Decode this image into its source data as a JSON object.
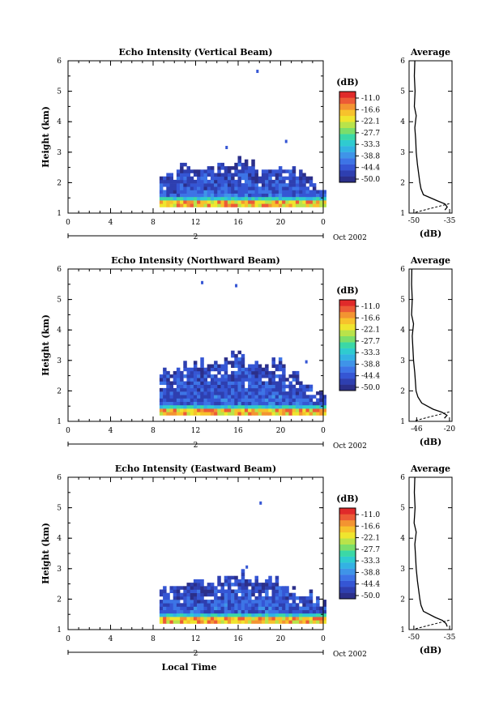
{
  "colorbar_colors": [
    "#2b2f8a",
    "#2e3fb0",
    "#3556d4",
    "#3d74e6",
    "#3f94e8",
    "#33b2e3",
    "#2fcbd0",
    "#3bd8a6",
    "#7bde6a",
    "#b9e34a",
    "#efe52e",
    "#f7c22c",
    "#f39431",
    "#ec5b36",
    "#e02a2a"
  ],
  "chart_data": [
    {
      "type": "heatmap",
      "title": "Echo Intensity (Vertical Beam)",
      "ylabel": "Height (km)",
      "ylim": [
        1,
        6
      ],
      "yticks": [
        "1",
        "2",
        "3",
        "4",
        "5",
        "6"
      ],
      "xticks": [
        "0",
        "4",
        "8",
        "12",
        "16",
        "20",
        "0"
      ],
      "xlim": [
        0,
        24
      ],
      "date_axis": {
        "day": "2",
        "month_year": "Oct 2002"
      },
      "colorbar": {
        "unit": "(dB)",
        "labels": [
          "-11.0",
          "-16.6",
          "-22.1",
          "-27.7",
          "-33.3",
          "-38.8",
          "-44.4",
          "-50.0"
        ]
      },
      "echo_extent": {
        "start_hour": 8.6,
        "end_hour": 24,
        "base_km": 1.2,
        "top_km_profile": [
          2.1,
          2.5,
          2.5,
          2.4,
          2.6,
          2.7,
          2.6,
          2.3,
          2.4,
          2.3,
          2.2,
          1.9
        ],
        "scattered_points": [
          [
            17.7,
            5.6
          ],
          [
            20.4,
            3.3
          ],
          [
            14.8,
            3.1
          ]
        ]
      },
      "profile": {
        "title": "Average",
        "xlabel": "(dB)",
        "xticks": [
          "-50",
          "-35"
        ],
        "xlim": [
          -52,
          -34
        ],
        "yticks": [
          "1",
          "2",
          "3",
          "4",
          "5",
          "6"
        ],
        "height_km": [
          1.1,
          1.2,
          1.3,
          1.4,
          1.6,
          1.8,
          2.0,
          2.3,
          2.6,
          3.0,
          3.4,
          3.8,
          4.2,
          4.5,
          5.0,
          5.5,
          6.0
        ],
        "value_db": [
          -37,
          -36,
          -37,
          -40,
          -46,
          -47,
          -47.5,
          -48,
          -48.5,
          -49,
          -49.2,
          -49.6,
          -49,
          -49.8,
          -49.5,
          -49.8,
          -49.6
        ]
      }
    },
    {
      "type": "heatmap",
      "title": "Echo Intensity (Northward Beam)",
      "ylabel": "Height (km)",
      "ylim": [
        1,
        6
      ],
      "yticks": [
        "1",
        "2",
        "3",
        "4",
        "5",
        "6"
      ],
      "xticks": [
        "0",
        "4",
        "8",
        "12",
        "16",
        "20",
        "0"
      ],
      "xlim": [
        0,
        24
      ],
      "date_axis": {
        "day": "2",
        "month_year": "Oct 2002"
      },
      "colorbar": {
        "unit": "(dB)",
        "labels": [
          "-11.0",
          "-16.6",
          "-22.1",
          "-27.7",
          "-33.3",
          "-38.8",
          "-44.4",
          "-50.0"
        ]
      },
      "echo_extent": {
        "start_hour": 8.6,
        "end_hour": 24,
        "base_km": 1.2,
        "top_km_profile": [
          2.6,
          2.8,
          2.9,
          2.8,
          3.0,
          3.2,
          2.9,
          2.7,
          2.9,
          2.5,
          2.2,
          1.9
        ],
        "scattered_points": [
          [
            12.5,
            5.5
          ],
          [
            15.7,
            5.4
          ],
          [
            22.3,
            2.9
          ]
        ]
      },
      "profile": {
        "title": "Average",
        "xlabel": "(dB)",
        "xticks": [
          "-46",
          "-20"
        ],
        "xlim": [
          -52,
          -18
        ],
        "yticks": [
          "1",
          "2",
          "3",
          "4",
          "5",
          "6"
        ],
        "height_km": [
          1.1,
          1.2,
          1.3,
          1.4,
          1.6,
          1.8,
          2.0,
          2.3,
          2.6,
          3.0,
          3.4,
          3.8,
          4.2,
          4.5,
          5.0,
          5.5,
          6.0
        ],
        "value_db": [
          -24,
          -22,
          -26,
          -33,
          -42,
          -45,
          -46.5,
          -47,
          -47.5,
          -48.5,
          -49,
          -49.5,
          -48.5,
          -50,
          -49.5,
          -50,
          -49.8
        ]
      }
    },
    {
      "type": "heatmap",
      "title": "Echo Intensity (Eastward Beam)",
      "ylabel": "Height (km)",
      "ylim": [
        1,
        6
      ],
      "yticks": [
        "1",
        "2",
        "3",
        "4",
        "5",
        "6"
      ],
      "xticks": [
        "0",
        "4",
        "8",
        "12",
        "16",
        "20",
        "0"
      ],
      "xlim": [
        0,
        24
      ],
      "date_axis": {
        "day": "2",
        "month_year": "Oct 2002"
      },
      "xlabel": "Local Time",
      "colorbar": {
        "unit": "(dB)",
        "labels": [
          "-11.0",
          "-16.6",
          "-22.1",
          "-27.7",
          "-33.3",
          "-38.8",
          "-44.4",
          "-50.0"
        ]
      },
      "echo_extent": {
        "start_hour": 8.6,
        "end_hour": 24,
        "base_km": 1.2,
        "top_km_profile": [
          2.3,
          2.4,
          2.6,
          2.5,
          2.7,
          2.8,
          2.6,
          2.5,
          2.5,
          2.2,
          2.1,
          1.9
        ],
        "scattered_points": [
          [
            18.0,
            5.1
          ],
          [
            16.7,
            3.0
          ],
          [
            20.0,
            2.3
          ]
        ]
      },
      "profile": {
        "title": "Average",
        "xlabel": "(dB)",
        "xticks": [
          "-50",
          "-35"
        ],
        "xlim": [
          -52,
          -34
        ],
        "yticks": [
          "1",
          "2",
          "3",
          "4",
          "5",
          "6"
        ],
        "height_km": [
          1.1,
          1.2,
          1.3,
          1.4,
          1.6,
          1.8,
          2.0,
          2.3,
          2.6,
          3.0,
          3.4,
          3.8,
          4.2,
          4.5,
          5.0,
          5.5,
          6.0
        ],
        "value_db": [
          -36,
          -36.5,
          -38,
          -41,
          -46,
          -47,
          -47.5,
          -48,
          -48.5,
          -49,
          -49.3,
          -49.6,
          -49,
          -49.9,
          -49.5,
          -49.8,
          -49.6
        ]
      }
    }
  ]
}
